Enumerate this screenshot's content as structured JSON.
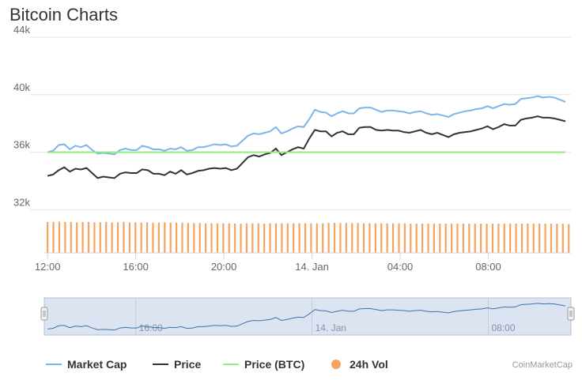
{
  "page": {
    "title": "Bitcoin Charts",
    "credit": "CoinMarketCap"
  },
  "colors": {
    "market_cap": "#7cb5ec",
    "price": "#333333",
    "price_btc": "#90ed7d",
    "volume": "#f7a35c",
    "grid": "#e6e6e6",
    "navigator_fill": "#dce3f1"
  },
  "chart_data": {
    "type": "line",
    "title": "Bitcoin Charts",
    "x_unit": "hours since 12:00",
    "x_tick_labels": [
      "12:00",
      "16:00",
      "20:00",
      "14. Jan",
      "04:00",
      "08:00"
    ],
    "x_tick_values": [
      0,
      4,
      8,
      12,
      16,
      20
    ],
    "y_tick_labels": [
      "32k",
      "36k",
      "40k",
      "44k"
    ],
    "y_tick_values": [
      32000,
      36000,
      40000,
      44000
    ],
    "ylim": [
      29000,
      44000
    ],
    "xlim": [
      -0.15,
      23.75
    ],
    "grid": true,
    "legend_position": "bottom",
    "series": [
      {
        "name": "Market Cap",
        "values": [
          36000,
          36100,
          36500,
          36550,
          36200,
          36450,
          36350,
          36500,
          36150,
          35900,
          35950,
          35900,
          35850,
          36150,
          36250,
          36150,
          36150,
          36450,
          36350,
          36200,
          36200,
          36100,
          36250,
          36200,
          36350,
          36100,
          36150,
          36350,
          36350,
          36450,
          36550,
          36500,
          36550,
          36400,
          36450,
          36800,
          37150,
          37300,
          37250,
          37350,
          37450,
          37750,
          37300,
          37450,
          37650,
          37800,
          37750,
          38300,
          38950,
          38800,
          38750,
          38500,
          38700,
          38850,
          38700,
          38700,
          39050,
          39100,
          39100,
          38950,
          38800,
          38900,
          38900,
          38850,
          38800,
          38700,
          38800,
          38850,
          38700,
          38600,
          38650,
          38550,
          38450,
          38650,
          38750,
          38850,
          38900,
          39000,
          39050,
          39200,
          39050,
          39200,
          39350,
          39300,
          39350,
          39700,
          39750,
          39800,
          39900,
          39800,
          39850,
          39800,
          39650,
          39500
        ]
      },
      {
        "name": "Price",
        "values": [
          34350,
          34450,
          34750,
          34950,
          34650,
          34850,
          34800,
          34900,
          34550,
          34200,
          34300,
          34250,
          34200,
          34500,
          34600,
          34550,
          34550,
          34800,
          34750,
          34500,
          34500,
          34400,
          34650,
          34500,
          34750,
          34450,
          34550,
          34700,
          34750,
          34850,
          34900,
          34850,
          34900,
          34750,
          34850,
          35250,
          35650,
          35800,
          35700,
          35850,
          35950,
          36250,
          35800,
          36000,
          36200,
          36350,
          36250,
          36950,
          37550,
          37450,
          37450,
          37100,
          37350,
          37450,
          37250,
          37250,
          37700,
          37750,
          37750,
          37550,
          37500,
          37550,
          37500,
          37500,
          37400,
          37350,
          37450,
          37550,
          37350,
          37250,
          37350,
          37200,
          37050,
          37250,
          37350,
          37400,
          37450,
          37550,
          37650,
          37800,
          37600,
          37750,
          37950,
          37850,
          37850,
          38250,
          38350,
          38400,
          38500,
          38400,
          38400,
          38350,
          38250,
          38150
        ]
      },
      {
        "name": "Price (BTC)",
        "values": [
          36000,
          36000
        ]
      },
      {
        "name": "24h Vol",
        "y_unit": "volume (axis not labeled)",
        "values": [
          90,
          90,
          91,
          90,
          90,
          89,
          90,
          90,
          89,
          89,
          90,
          89,
          89,
          90,
          89,
          89,
          88,
          89,
          88,
          88,
          89,
          88,
          88,
          88,
          87,
          87,
          87,
          86,
          86,
          86,
          86,
          86,
          85,
          85,
          86,
          86,
          86,
          85,
          86,
          86,
          86,
          86,
          86,
          86,
          86,
          86,
          86,
          86,
          87,
          87,
          87,
          87,
          87,
          87,
          86,
          86,
          86,
          86,
          86,
          86,
          86,
          86,
          85,
          85,
          85,
          85,
          85,
          85,
          85,
          85,
          85,
          85,
          85,
          85,
          85,
          85,
          85,
          85,
          85,
          85,
          85,
          85,
          85,
          85,
          85,
          85,
          85,
          85,
          85,
          84
        ]
      }
    ]
  },
  "navigator": {
    "tick_labels": [
      "16:00",
      "14. Jan",
      "08:00"
    ],
    "tick_values": [
      4,
      12,
      20
    ]
  },
  "legend": [
    {
      "label": "Market Cap",
      "marker": "line",
      "color": "#7cb5ec"
    },
    {
      "label": "Price",
      "marker": "line",
      "color": "#333333"
    },
    {
      "label": "Price (BTC)",
      "marker": "line",
      "color": "#90ed7d"
    },
    {
      "label": "24h Vol",
      "marker": "circle",
      "color": "#f7a35c"
    }
  ]
}
